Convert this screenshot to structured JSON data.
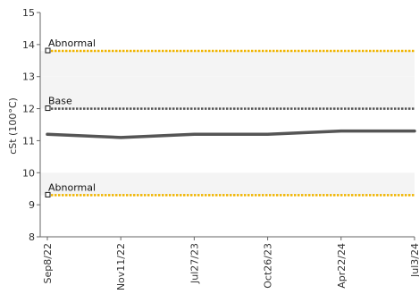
{
  "chart_data": {
    "type": "line",
    "ylabel": "cSt (100°C)",
    "ylim": [
      8,
      15
    ],
    "y_ticks": [
      8,
      9,
      10,
      11,
      12,
      13,
      14,
      15
    ],
    "x_tick_labels": [
      "Sep8/22",
      "Nov11/22",
      "Jul27/23",
      "Oct26/23",
      "Apr22/24",
      "Jul3/24"
    ],
    "bands": [
      {
        "from": 9.3,
        "to": 10.0,
        "color": "#f4f4f4"
      },
      {
        "from": 12.0,
        "to": 13.0,
        "color": "#f4f4f4"
      },
      {
        "from": 13.0,
        "to": 13.8,
        "color": "#f4f4f4"
      }
    ],
    "series": [
      {
        "x": [
          "Sep8/22",
          "Nov11/22",
          "Jul27/23",
          "Oct26/23",
          "Apr22/24",
          "Jul3/24"
        ],
        "values": [
          11.2,
          11.1,
          11.2,
          11.2,
          11.3,
          11.3
        ],
        "color": "#555555"
      }
    ],
    "reference_lines": [
      {
        "label": "Abnormal",
        "value": 13.8,
        "color": "#f0b400",
        "style": "dotted"
      },
      {
        "label": "Base",
        "value": 12.0,
        "color": "#555555",
        "style": "dotted"
      },
      {
        "label": "Abnormal",
        "value": 9.3,
        "color": "#f0b400",
        "style": "dotted"
      }
    ],
    "grid": false
  }
}
